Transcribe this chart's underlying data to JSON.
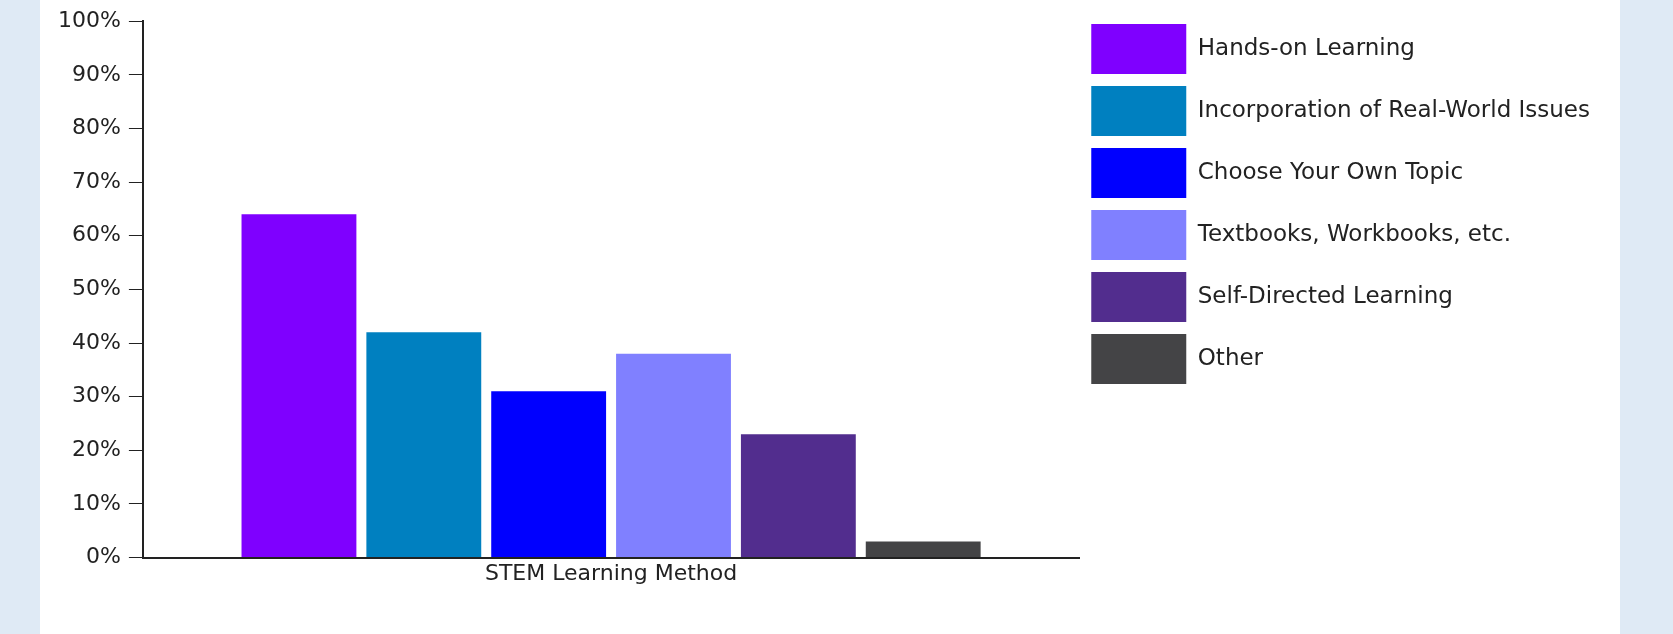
{
  "chart_data": {
    "type": "bar",
    "categories": [
      "STEM Learning Method"
    ],
    "series": [
      {
        "name": "Hands-on Learning",
        "color": "#7f00ff",
        "values": [
          64
        ]
      },
      {
        "name": "Incorporation of Real-World Issues",
        "color": "#0080c0",
        "values": [
          42
        ]
      },
      {
        "name": "Choose Your Own Topic",
        "color": "#0000ff",
        "values": [
          31
        ]
      },
      {
        "name": "Textbooks, Workbooks, etc.",
        "color": "#8080ff",
        "values": [
          38
        ]
      },
      {
        "name": "Self-Directed Learning",
        "color": "#522d8e",
        "values": [
          23
        ]
      },
      {
        "name": "Other",
        "color": "#444446",
        "values": [
          3
        ]
      }
    ],
    "ylim": [
      0,
      100
    ],
    "yticks": [
      {
        "value": 0,
        "label": "0%"
      },
      {
        "value": 10,
        "label": "10%"
      },
      {
        "value": 20,
        "label": "20%"
      },
      {
        "value": 30,
        "label": "30%"
      },
      {
        "value": 40,
        "label": "40%"
      },
      {
        "value": 50,
        "label": "50%"
      },
      {
        "value": 60,
        "label": "60%"
      },
      {
        "value": 70,
        "label": "70%"
      },
      {
        "value": 80,
        "label": "80%"
      },
      {
        "value": 90,
        "label": "90%"
      },
      {
        "value": 100,
        "label": "100%"
      }
    ],
    "grid": false,
    "legend": "right"
  }
}
